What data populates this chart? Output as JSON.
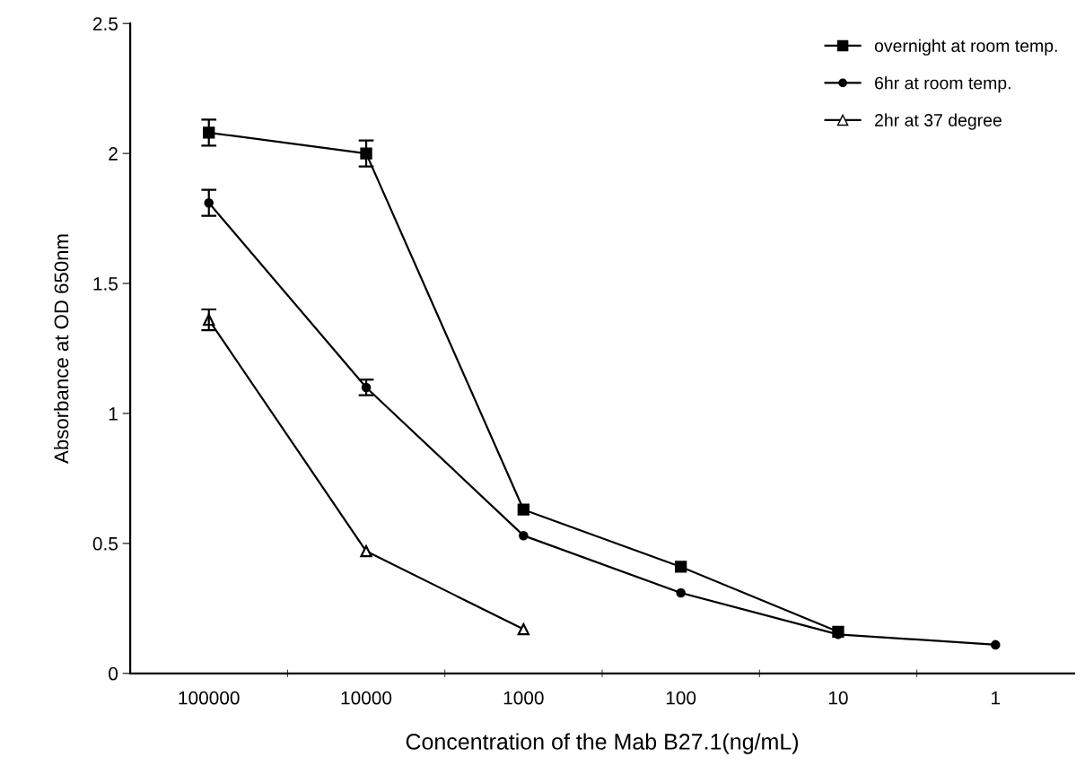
{
  "chart_data": {
    "type": "line",
    "xlabel": "Concentration of the Mab B27.1(ng/mL)",
    "ylabel": "Absorbance at OD 650nm",
    "categories": [
      "100000",
      "10000",
      "1000",
      "100",
      "10",
      "1"
    ],
    "series": [
      {
        "name": "overnight at room temp.",
        "color": "#000000",
        "marker": "square",
        "values": [
          2.08,
          2.0,
          0.63,
          0.41,
          0.16,
          null
        ],
        "errors": [
          0.05,
          0.05,
          null,
          null,
          null,
          null
        ]
      },
      {
        "name": "6hr at room temp.",
        "color": "#000000",
        "marker": "circle",
        "values": [
          1.81,
          1.1,
          0.53,
          0.31,
          0.15,
          0.11
        ],
        "errors": [
          0.05,
          0.03,
          null,
          null,
          null,
          null
        ]
      },
      {
        "name": "2hr at 37 degree",
        "color": "#000000",
        "marker": "triangle",
        "values": [
          1.36,
          0.47,
          0.17,
          null,
          null,
          null
        ],
        "errors": [
          0.04,
          null,
          null,
          null,
          null,
          null
        ]
      }
    ],
    "ylim": [
      0,
      2.5
    ],
    "yticks": [
      0,
      0.5,
      1,
      1.5,
      2,
      2.5
    ],
    "grid": false,
    "legend": "top right",
    "line_style": "solid"
  }
}
